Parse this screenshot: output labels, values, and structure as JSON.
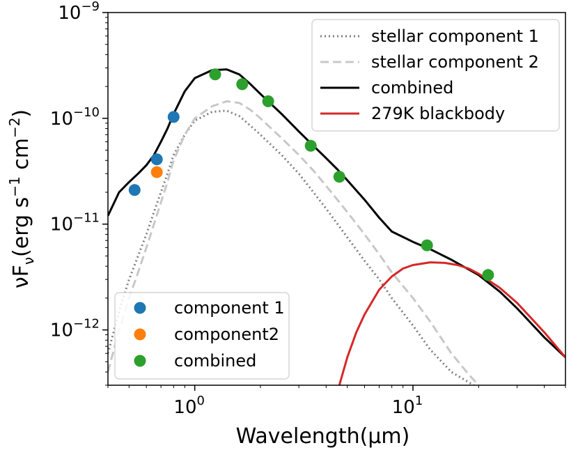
{
  "chart_data": {
    "type": "line",
    "xlabel": "Wavelength(μm)",
    "ylabel_parts": [
      "νF",
      "ν",
      "(erg s",
      "−1",
      " cm",
      "−2",
      ")"
    ],
    "xscale": "log",
    "yscale": "log",
    "xlim": [
      0.4,
      50
    ],
    "ylim": [
      3e-13,
      1e-09
    ],
    "x_ticks": [
      {
        "value": 1,
        "base": "10",
        "exp": "0"
      },
      {
        "value": 10,
        "base": "10",
        "exp": "1"
      }
    ],
    "y_ticks": [
      {
        "value": 1e-12,
        "base": "10",
        "exp": "−12"
      },
      {
        "value": 1e-11,
        "base": "10",
        "exp": "−11"
      },
      {
        "value": 1e-10,
        "base": "10",
        "exp": "−10"
      },
      {
        "value": 1e-09,
        "base": "10",
        "exp": "−9"
      }
    ],
    "series": [
      {
        "name": "stellar component 1",
        "style": "dotted",
        "color": "#7f7f7f",
        "x": [
          0.4,
          0.45,
          0.5,
          0.55,
          0.6,
          0.65,
          0.7,
          0.75,
          0.8,
          0.9,
          1.0,
          1.2,
          1.4,
          1.6,
          1.8,
          2.0,
          2.5,
          3.0,
          3.5,
          4.0,
          5.0,
          6.0,
          7.0,
          8.0,
          10.0,
          12.0,
          15.0,
          18.0,
          20.0
        ],
        "y": [
          6e-13,
          1.5e-12,
          3e-12,
          5e-12,
          8e-12,
          1.3e-11,
          2e-11,
          3e-11,
          4.5e-11,
          7e-11,
          9.5e-11,
          1.15e-10,
          1.18e-10,
          1.05e-10,
          8.5e-11,
          7e-11,
          4.5e-11,
          3e-11,
          2e-11,
          1.4e-11,
          7.5e-12,
          4.5e-12,
          3e-12,
          2e-12,
          1.1e-12,
          6.5e-13,
          4e-13,
          3.2e-13,
          2.8e-13
        ]
      },
      {
        "name": "stellar component 2",
        "style": "dashed",
        "color": "#c8c8c8",
        "x": [
          0.4,
          0.45,
          0.5,
          0.55,
          0.6,
          0.65,
          0.7,
          0.75,
          0.8,
          0.9,
          1.0,
          1.2,
          1.4,
          1.6,
          1.8,
          2.0,
          2.5,
          3.0,
          3.5,
          4.0,
          5.0,
          6.0,
          7.0,
          8.0,
          10.0,
          12.0,
          15.0,
          18.0,
          20.0
        ],
        "y": [
          4e-13,
          1e-12,
          2e-12,
          3.5e-12,
          6e-12,
          1e-11,
          1.6e-11,
          2.5e-11,
          4e-11,
          7e-11,
          1e-10,
          1.3e-10,
          1.45e-10,
          1.4e-10,
          1.2e-10,
          1e-10,
          6.5e-11,
          4.5e-11,
          3.2e-11,
          2.3e-11,
          1.3e-11,
          8e-12,
          5.2e-12,
          3.5e-12,
          2e-12,
          1.2e-12,
          6e-13,
          3.8e-13,
          3e-13
        ]
      },
      {
        "name": "combined",
        "style": "solid",
        "color": "#000000",
        "x": [
          0.4,
          0.45,
          0.5,
          0.55,
          0.6,
          0.65,
          0.7,
          0.75,
          0.8,
          0.9,
          1.0,
          1.2,
          1.4,
          1.6,
          1.8,
          2.0,
          2.5,
          3.0,
          3.5,
          4.0,
          4.5,
          5.0,
          6.0,
          7.0,
          8.0,
          10.0,
          12.0,
          15.0,
          20.0,
          25.0,
          30.0,
          40.0,
          50.0
        ],
        "y": [
          1.2e-11,
          2e-11,
          2.5e-11,
          3e-11,
          3.6e-11,
          4.5e-11,
          6e-11,
          8e-11,
          1.1e-10,
          1.8e-10,
          2.4e-10,
          2.85e-10,
          2.9e-10,
          2.6e-10,
          2.1e-10,
          1.7e-10,
          1.1e-10,
          7.5e-11,
          5.5e-11,
          4.2e-11,
          3.3e-11,
          2.6e-11,
          1.7e-11,
          1.15e-11,
          8.5e-12,
          6.8e-12,
          5.8e-12,
          4.6e-12,
          3.3e-12,
          2.3e-12,
          1.6e-12,
          8.5e-13,
          5.5e-13
        ]
      },
      {
        "name": "279K blackbody",
        "style": "solid",
        "color": "#d62728",
        "x": [
          4.6,
          5.0,
          5.5,
          6.0,
          7.0,
          8.0,
          9.0,
          10.0,
          12.0,
          14.0,
          16.0,
          18.0,
          20.0,
          25.0,
          30.0,
          40.0,
          50.0
        ],
        "y": [
          3e-13,
          5.5e-13,
          9.5e-13,
          1.4e-12,
          2.4e-12,
          3.2e-12,
          3.8e-12,
          4.1e-12,
          4.35e-12,
          4.3e-12,
          4.1e-12,
          3.8e-12,
          3.4e-12,
          2.5e-12,
          1.8e-12,
          9.5e-13,
          5.5e-13
        ]
      }
    ],
    "points": [
      {
        "name": "component 1",
        "color": "#1f77b4",
        "x": [
          0.53,
          0.67,
          0.8
        ],
        "y": [
          2.1e-11,
          4.1e-11,
          1.03e-10
        ]
      },
      {
        "name": "component2",
        "color": "#ff7f0e",
        "x": [
          0.67
        ],
        "y": [
          3.1e-11
        ]
      },
      {
        "name": "combined",
        "color": "#2ca02c",
        "x": [
          1.24,
          1.65,
          2.17,
          3.4,
          4.6,
          11.6,
          22.1
        ],
        "y": [
          2.6e-10,
          2.1e-10,
          1.45e-10,
          5.5e-11,
          2.8e-11,
          6.3e-12,
          3.3e-12
        ]
      }
    ],
    "legend_lines": [
      {
        "label": "stellar component 1",
        "style": "dotted",
        "color": "#7f7f7f"
      },
      {
        "label": "stellar component 2",
        "style": "dashed",
        "color": "#c8c8c8"
      },
      {
        "label": "combined",
        "style": "solid",
        "color": "#000000"
      },
      {
        "label": "279K blackbody",
        "style": "solid",
        "color": "#d62728"
      }
    ],
    "legend_points": [
      {
        "label": "component 1",
        "color": "#1f77b4"
      },
      {
        "label": "component2",
        "color": "#ff7f0e"
      },
      {
        "label": "combined",
        "color": "#2ca02c"
      }
    ],
    "legend_lines_position": "top-right",
    "legend_points_position": "bottom-left"
  }
}
